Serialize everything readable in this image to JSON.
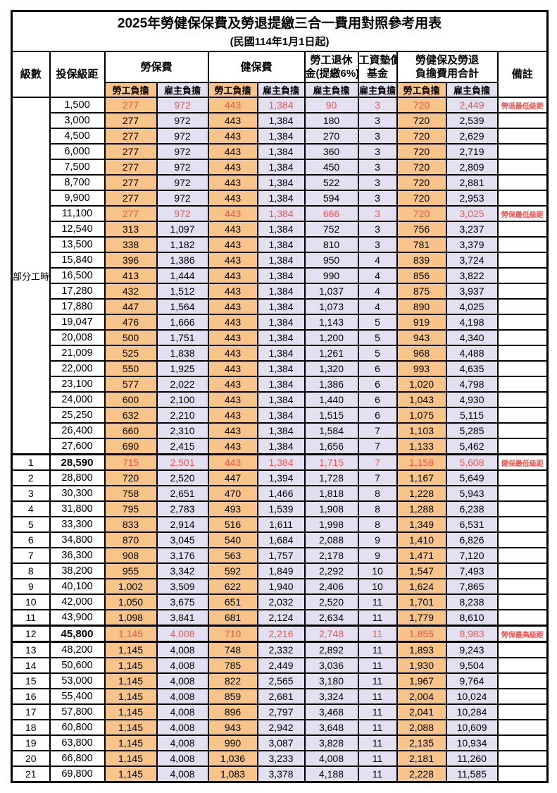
{
  "page": {
    "title": "2025年勞健保保費及勞退提繳三合一費用對照參考用表",
    "subtitle": "(民國114年1月1日起)"
  },
  "colors": {
    "employee_bg": "#F9C489",
    "employer_bg": "#E3E1F1",
    "highlight_text": "#F4534F",
    "border": "#000000"
  },
  "header": {
    "level": "級數",
    "bracket": "投保級距",
    "labor_insurance": "勞保費",
    "health_insurance": "健保費",
    "pension_line1": "勞工退休",
    "pension_line2": "金(提繳6%)",
    "wage_fund_line1": "工資墊償",
    "wage_fund_line2": "基金",
    "total_line1": "勞健保及勞退",
    "total_line2": "負擔費用合計",
    "remark": "備註",
    "employee_share": "勞工負擔",
    "employer_share": "雇主負擔"
  },
  "part_time_label": "部分工時",
  "rows": [
    {
      "level": "",
      "bracket": "1,500",
      "li_emp": "277",
      "li_er": "972",
      "hi_emp": "443",
      "hi_er": "1,384",
      "pension": "90",
      "fund": "3",
      "tot_emp": "720",
      "tot_er": "2,449",
      "remark": "勞退最低級距",
      "red": true
    },
    {
      "level": "",
      "bracket": "3,000",
      "li_emp": "277",
      "li_er": "972",
      "hi_emp": "443",
      "hi_er": "1,384",
      "pension": "180",
      "fund": "3",
      "tot_emp": "720",
      "tot_er": "2,539"
    },
    {
      "level": "",
      "bracket": "4,500",
      "li_emp": "277",
      "li_er": "972",
      "hi_emp": "443",
      "hi_er": "1,384",
      "pension": "270",
      "fund": "3",
      "tot_emp": "720",
      "tot_er": "2,629"
    },
    {
      "level": "",
      "bracket": "6,000",
      "li_emp": "277",
      "li_er": "972",
      "hi_emp": "443",
      "hi_er": "1,384",
      "pension": "360",
      "fund": "3",
      "tot_emp": "720",
      "tot_er": "2,719"
    },
    {
      "level": "",
      "bracket": "7,500",
      "li_emp": "277",
      "li_er": "972",
      "hi_emp": "443",
      "hi_er": "1,384",
      "pension": "450",
      "fund": "3",
      "tot_emp": "720",
      "tot_er": "2,809"
    },
    {
      "level": "",
      "bracket": "8,700",
      "li_emp": "277",
      "li_er": "972",
      "hi_emp": "443",
      "hi_er": "1,384",
      "pension": "522",
      "fund": "3",
      "tot_emp": "720",
      "tot_er": "2,881"
    },
    {
      "level": "",
      "bracket": "9,900",
      "li_emp": "277",
      "li_er": "972",
      "hi_emp": "443",
      "hi_er": "1,384",
      "pension": "594",
      "fund": "3",
      "tot_emp": "720",
      "tot_er": "2,953"
    },
    {
      "level": "",
      "bracket": "11,100",
      "li_emp": "277",
      "li_er": "972",
      "hi_emp": "443",
      "hi_er": "1,384",
      "pension": "666",
      "fund": "3",
      "tot_emp": "720",
      "tot_er": "3,025",
      "remark": "勞保最低級距",
      "red": true
    },
    {
      "level": "",
      "bracket": "12,540",
      "li_emp": "313",
      "li_er": "1,097",
      "hi_emp": "443",
      "hi_er": "1,384",
      "pension": "752",
      "fund": "3",
      "tot_emp": "756",
      "tot_er": "3,237"
    },
    {
      "level": "",
      "bracket": "13,500",
      "li_emp": "338",
      "li_er": "1,182",
      "hi_emp": "443",
      "hi_er": "1,384",
      "pension": "810",
      "fund": "3",
      "tot_emp": "781",
      "tot_er": "3,379"
    },
    {
      "level": "",
      "bracket": "15,840",
      "li_emp": "396",
      "li_er": "1,386",
      "hi_emp": "443",
      "hi_er": "1,384",
      "pension": "950",
      "fund": "4",
      "tot_emp": "839",
      "tot_er": "3,724"
    },
    {
      "level": "",
      "bracket": "16,500",
      "li_emp": "413",
      "li_er": "1,444",
      "hi_emp": "443",
      "hi_er": "1,384",
      "pension": "990",
      "fund": "4",
      "tot_emp": "856",
      "tot_er": "3,822"
    },
    {
      "level": "",
      "bracket": "17,280",
      "li_emp": "432",
      "li_er": "1,512",
      "hi_emp": "443",
      "hi_er": "1,384",
      "pension": "1,037",
      "fund": "4",
      "tot_emp": "875",
      "tot_er": "3,937"
    },
    {
      "level": "",
      "bracket": "17,880",
      "li_emp": "447",
      "li_er": "1,564",
      "hi_emp": "443",
      "hi_er": "1,384",
      "pension": "1,073",
      "fund": "4",
      "tot_emp": "890",
      "tot_er": "4,025"
    },
    {
      "level": "",
      "bracket": "19,047",
      "li_emp": "476",
      "li_er": "1,666",
      "hi_emp": "443",
      "hi_er": "1,384",
      "pension": "1,143",
      "fund": "5",
      "tot_emp": "919",
      "tot_er": "4,198"
    },
    {
      "level": "",
      "bracket": "20,008",
      "li_emp": "500",
      "li_er": "1,751",
      "hi_emp": "443",
      "hi_er": "1,384",
      "pension": "1,200",
      "fund": "5",
      "tot_emp": "943",
      "tot_er": "4,340"
    },
    {
      "level": "",
      "bracket": "21,009",
      "li_emp": "525",
      "li_er": "1,838",
      "hi_emp": "443",
      "hi_er": "1,384",
      "pension": "1,261",
      "fund": "5",
      "tot_emp": "968",
      "tot_er": "4,488"
    },
    {
      "level": "",
      "bracket": "22,000",
      "li_emp": "550",
      "li_er": "1,925",
      "hi_emp": "443",
      "hi_er": "1,384",
      "pension": "1,320",
      "fund": "6",
      "tot_emp": "993",
      "tot_er": "4,635"
    },
    {
      "level": "",
      "bracket": "23,100",
      "li_emp": "577",
      "li_er": "2,022",
      "hi_emp": "443",
      "hi_er": "1,384",
      "pension": "1,386",
      "fund": "6",
      "tot_emp": "1,020",
      "tot_er": "4,798"
    },
    {
      "level": "",
      "bracket": "24,000",
      "li_emp": "600",
      "li_er": "2,100",
      "hi_emp": "443",
      "hi_er": "1,384",
      "pension": "1,440",
      "fund": "6",
      "tot_emp": "1,043",
      "tot_er": "4,930"
    },
    {
      "level": "",
      "bracket": "25,250",
      "li_emp": "632",
      "li_er": "2,210",
      "hi_emp": "443",
      "hi_er": "1,384",
      "pension": "1,515",
      "fund": "6",
      "tot_emp": "1,075",
      "tot_er": "5,115"
    },
    {
      "level": "",
      "bracket": "26,400",
      "li_emp": "660",
      "li_er": "2,310",
      "hi_emp": "443",
      "hi_er": "1,384",
      "pension": "1,584",
      "fund": "7",
      "tot_emp": "1,103",
      "tot_er": "5,285"
    },
    {
      "level": "",
      "bracket": "27,600",
      "li_emp": "690",
      "li_er": "2,415",
      "hi_emp": "443",
      "hi_er": "1,384",
      "pension": "1,656",
      "fund": "7",
      "tot_emp": "1,133",
      "tot_er": "5,462"
    },
    {
      "level": "1",
      "bracket": "28,590",
      "li_emp": "715",
      "li_er": "2,501",
      "hi_emp": "443",
      "hi_er": "1,384",
      "pension": "1,715",
      "fund": "7",
      "tot_emp": "1,158",
      "tot_er": "5,608",
      "remark": "健保最低級距",
      "red": true,
      "bold": true,
      "thick_top": true
    },
    {
      "level": "2",
      "bracket": "28,800",
      "li_emp": "720",
      "li_er": "2,520",
      "hi_emp": "447",
      "hi_er": "1,394",
      "pension": "1,728",
      "fund": "7",
      "tot_emp": "1,167",
      "tot_er": "5,649"
    },
    {
      "level": "3",
      "bracket": "30,300",
      "li_emp": "758",
      "li_er": "2,651",
      "hi_emp": "470",
      "hi_er": "1,466",
      "pension": "1,818",
      "fund": "8",
      "tot_emp": "1,228",
      "tot_er": "5,943"
    },
    {
      "level": "4",
      "bracket": "31,800",
      "li_emp": "795",
      "li_er": "2,783",
      "hi_emp": "493",
      "hi_er": "1,539",
      "pension": "1,908",
      "fund": "8",
      "tot_emp": "1,288",
      "tot_er": "6,238"
    },
    {
      "level": "5",
      "bracket": "33,300",
      "li_emp": "833",
      "li_er": "2,914",
      "hi_emp": "516",
      "hi_er": "1,611",
      "pension": "1,998",
      "fund": "8",
      "tot_emp": "1,349",
      "tot_er": "6,531"
    },
    {
      "level": "6",
      "bracket": "34,800",
      "li_emp": "870",
      "li_er": "3,045",
      "hi_emp": "540",
      "hi_er": "1,684",
      "pension": "2,088",
      "fund": "9",
      "tot_emp": "1,410",
      "tot_er": "6,826"
    },
    {
      "level": "7",
      "bracket": "36,300",
      "li_emp": "908",
      "li_er": "3,176",
      "hi_emp": "563",
      "hi_er": "1,757",
      "pension": "2,178",
      "fund": "9",
      "tot_emp": "1,471",
      "tot_er": "7,120"
    },
    {
      "level": "8",
      "bracket": "38,200",
      "li_emp": "955",
      "li_er": "3,342",
      "hi_emp": "592",
      "hi_er": "1,849",
      "pension": "2,292",
      "fund": "10",
      "tot_emp": "1,547",
      "tot_er": "7,493"
    },
    {
      "level": "9",
      "bracket": "40,100",
      "li_emp": "1,002",
      "li_er": "3,509",
      "hi_emp": "622",
      "hi_er": "1,940",
      "pension": "2,406",
      "fund": "10",
      "tot_emp": "1,624",
      "tot_er": "7,865"
    },
    {
      "level": "10",
      "bracket": "42,000",
      "li_emp": "1,050",
      "li_er": "3,675",
      "hi_emp": "651",
      "hi_er": "2,032",
      "pension": "2,520",
      "fund": "11",
      "tot_emp": "1,701",
      "tot_er": "8,238"
    },
    {
      "level": "11",
      "bracket": "43,900",
      "li_emp": "1,098",
      "li_er": "3,841",
      "hi_emp": "681",
      "hi_er": "2,124",
      "pension": "2,634",
      "fund": "11",
      "tot_emp": "1,779",
      "tot_er": "8,610"
    },
    {
      "level": "12",
      "bracket": "45,800",
      "li_emp": "1,145",
      "li_er": "4,008",
      "hi_emp": "710",
      "hi_er": "2,216",
      "pension": "2,748",
      "fund": "11",
      "tot_emp": "1,855",
      "tot_er": "8,983",
      "remark": "勞保最高級距",
      "red": true,
      "bold": true,
      "thick_top": true,
      "thick_bottom": true
    },
    {
      "level": "13",
      "bracket": "48,200",
      "li_emp": "1,145",
      "li_er": "4,008",
      "hi_emp": "748",
      "hi_er": "2,332",
      "pension": "2,892",
      "fund": "11",
      "tot_emp": "1,893",
      "tot_er": "9,243"
    },
    {
      "level": "14",
      "bracket": "50,600",
      "li_emp": "1,145",
      "li_er": "4,008",
      "hi_emp": "785",
      "hi_er": "2,449",
      "pension": "3,036",
      "fund": "11",
      "tot_emp": "1,930",
      "tot_er": "9,504"
    },
    {
      "level": "15",
      "bracket": "53,000",
      "li_emp": "1,145",
      "li_er": "4,008",
      "hi_emp": "822",
      "hi_er": "2,565",
      "pension": "3,180",
      "fund": "11",
      "tot_emp": "1,967",
      "tot_er": "9,764"
    },
    {
      "level": "16",
      "bracket": "55,400",
      "li_emp": "1,145",
      "li_er": "4,008",
      "hi_emp": "859",
      "hi_er": "2,681",
      "pension": "3,324",
      "fund": "11",
      "tot_emp": "2,004",
      "tot_er": "10,024"
    },
    {
      "level": "17",
      "bracket": "57,800",
      "li_emp": "1,145",
      "li_er": "4,008",
      "hi_emp": "896",
      "hi_er": "2,797",
      "pension": "3,468",
      "fund": "11",
      "tot_emp": "2,041",
      "tot_er": "10,284"
    },
    {
      "level": "18",
      "bracket": "60,800",
      "li_emp": "1,145",
      "li_er": "4,008",
      "hi_emp": "943",
      "hi_er": "2,942",
      "pension": "3,648",
      "fund": "11",
      "tot_emp": "2,088",
      "tot_er": "10,609"
    },
    {
      "level": "19",
      "bracket": "63,800",
      "li_emp": "1,145",
      "li_er": "4,008",
      "hi_emp": "990",
      "hi_er": "3,087",
      "pension": "3,828",
      "fund": "11",
      "tot_emp": "2,135",
      "tot_er": "10,934"
    },
    {
      "level": "20",
      "bracket": "66,800",
      "li_emp": "1,145",
      "li_er": "4,008",
      "hi_emp": "1,036",
      "hi_er": "3,233",
      "pension": "4,008",
      "fund": "11",
      "tot_emp": "2,181",
      "tot_er": "11,260"
    },
    {
      "level": "21",
      "bracket": "69,800",
      "li_emp": "1,145",
      "li_er": "4,008",
      "hi_emp": "1,083",
      "hi_er": "3,378",
      "pension": "4,188",
      "fund": "11",
      "tot_emp": "2,228",
      "tot_er": "11,585"
    }
  ]
}
